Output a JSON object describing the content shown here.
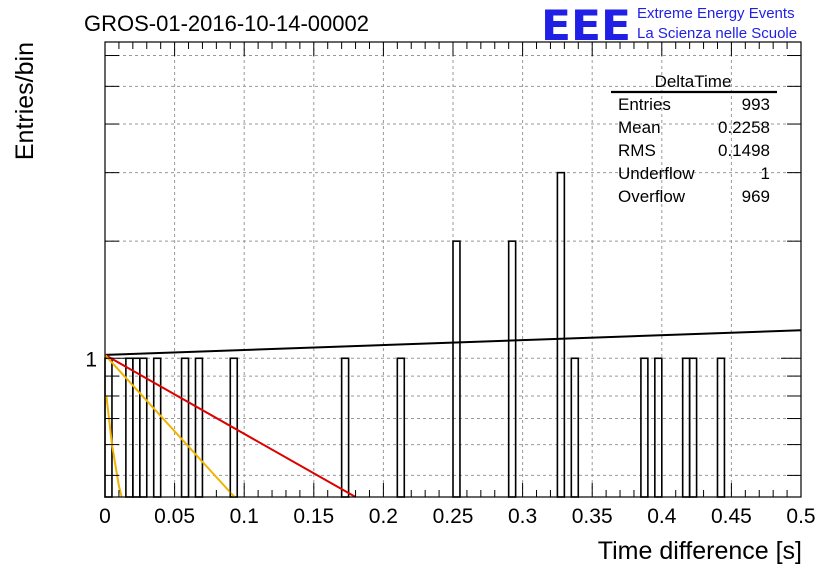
{
  "header": {
    "run_title": "GROS-01-2016-10-14-00002",
    "logo_text": "EEE",
    "logo_line1": "Extreme Energy Events",
    "logo_line2": "La Scienza nelle Scuole",
    "logo_color": "#1f1fe6"
  },
  "stats_box": {
    "title": "DeltaTime",
    "rows": [
      {
        "label": "Entries",
        "value": "993"
      },
      {
        "label": "Mean",
        "value": "0.2258"
      },
      {
        "label": "RMS",
        "value": "0.1498"
      },
      {
        "label": "Underflow",
        "value": "1"
      },
      {
        "label": "Overflow",
        "value": "969"
      }
    ]
  },
  "chart_data": {
    "type": "bar",
    "style": "histogram",
    "title": "GROS-01-2016-10-14-00002",
    "xlabel": "Time difference [s]",
    "ylabel": "Entries/bin",
    "xlim": [
      0,
      0.5
    ],
    "y_scale": "log",
    "ylim": [
      0.44,
      6.5
    ],
    "grid": true,
    "x_ticks": [
      "0",
      "0.05",
      "0.1",
      "0.15",
      "0.2",
      "0.25",
      "0.3",
      "0.35",
      "0.4",
      "0.45",
      "0.5"
    ],
    "y_tick_labels": [
      "1"
    ],
    "bin_width": 0.005,
    "bins": [
      {
        "x": 0.0,
        "count": 1
      },
      {
        "x": 0.015,
        "count": 1
      },
      {
        "x": 0.02,
        "count": 1
      },
      {
        "x": 0.025,
        "count": 1
      },
      {
        "x": 0.035,
        "count": 1
      },
      {
        "x": 0.055,
        "count": 1
      },
      {
        "x": 0.065,
        "count": 1
      },
      {
        "x": 0.09,
        "count": 1
      },
      {
        "x": 0.17,
        "count": 1
      },
      {
        "x": 0.21,
        "count": 1
      },
      {
        "x": 0.25,
        "count": 2
      },
      {
        "x": 0.29,
        "count": 2
      },
      {
        "x": 0.325,
        "count": 3
      },
      {
        "x": 0.335,
        "count": 1
      },
      {
        "x": 0.385,
        "count": 1
      },
      {
        "x": 0.395,
        "count": 1
      },
      {
        "x": 0.415,
        "count": 1
      },
      {
        "x": 0.42,
        "count": 1
      },
      {
        "x": 0.44,
        "count": 1
      }
    ],
    "fit_lines": [
      {
        "color": "#000000",
        "points": [
          [
            0,
            1.02
          ],
          [
            0.5,
            1.18
          ]
        ]
      },
      {
        "color": "#dd0000",
        "points": [
          [
            0,
            1.02
          ],
          [
            0.18,
            0.44
          ]
        ]
      },
      {
        "color": "#f0b400",
        "points": [
          [
            0,
            1.02
          ],
          [
            0.093,
            0.44
          ]
        ]
      },
      {
        "color": "#f0b400",
        "points": [
          [
            0.001,
            0.8
          ],
          [
            0.005,
            0.6
          ],
          [
            0.01,
            0.47
          ],
          [
            0.012,
            0.44
          ]
        ]
      }
    ]
  }
}
